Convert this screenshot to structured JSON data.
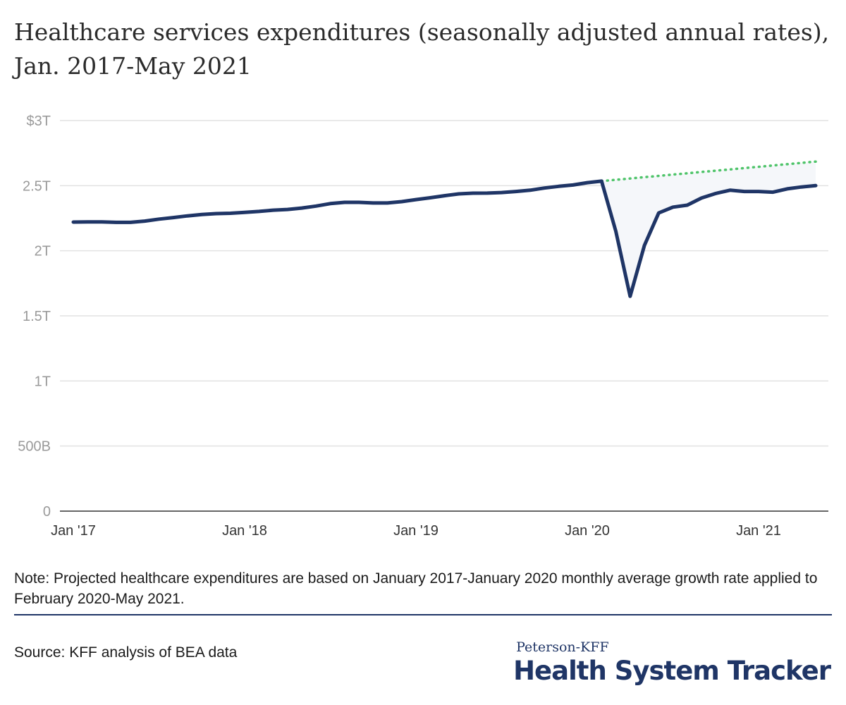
{
  "title": "Healthcare services expenditures (seasonally adjusted annual rates), Jan. 2017-May 2021",
  "note": "Note: Projected healthcare expenditures are based on January 2017-January 2020 monthly average growth rate applied to February 2020-May 2021.",
  "source": "Source: KFF analysis of BEA data",
  "brand": {
    "small": "Peterson-KFF",
    "big": "Health System Tracker"
  },
  "colors": {
    "actual": "#1f3566",
    "projected": "#4fc46a",
    "gap_fill": "#f5f7fa",
    "grid": "#e2e2e2",
    "axis_text": "#9a9a9a"
  },
  "chart_data": {
    "type": "line",
    "x_start": "Jan 2017",
    "x_end": "May 2021",
    "x_ticks": [
      {
        "index": 0,
        "label": "Jan '17"
      },
      {
        "index": 12,
        "label": "Jan '18"
      },
      {
        "index": 24,
        "label": "Jan '19"
      },
      {
        "index": 36,
        "label": "Jan '20"
      },
      {
        "index": 48,
        "label": "Jan '21"
      }
    ],
    "y_ticks": [
      {
        "value": 0,
        "label": "0"
      },
      {
        "value": 0.5,
        "label": "500B"
      },
      {
        "value": 1.0,
        "label": "1T"
      },
      {
        "value": 1.5,
        "label": "1.5T"
      },
      {
        "value": 2.0,
        "label": "2T"
      },
      {
        "value": 2.5,
        "label": "2.5T"
      },
      {
        "value": 3.0,
        "label": "$3T"
      }
    ],
    "ylim": [
      0,
      3.0
    ],
    "grid": true,
    "series": [
      {
        "style": "solid",
        "x_start_index": 0,
        "values": [
          2.22,
          2.222,
          2.222,
          2.218,
          2.218,
          2.228,
          2.243,
          2.255,
          2.268,
          2.278,
          2.285,
          2.288,
          2.295,
          2.302,
          2.312,
          2.317,
          2.328,
          2.343,
          2.362,
          2.372,
          2.372,
          2.367,
          2.367,
          2.377,
          2.393,
          2.407,
          2.423,
          2.437,
          2.442,
          2.443,
          2.447,
          2.455,
          2.465,
          2.482,
          2.495,
          2.505,
          2.523,
          2.535,
          2.15,
          1.65,
          2.04,
          2.29,
          2.335,
          2.35,
          2.405,
          2.44,
          2.465,
          2.455,
          2.455,
          2.45,
          2.475,
          2.49,
          2.5
        ]
      },
      {
        "style": "dotted",
        "x_start_index": 37,
        "values": [
          2.535,
          2.545,
          2.555,
          2.565,
          2.575,
          2.585,
          2.595,
          2.605,
          2.615,
          2.625,
          2.635,
          2.645,
          2.655,
          2.665,
          2.675,
          2.685
        ]
      }
    ]
  }
}
